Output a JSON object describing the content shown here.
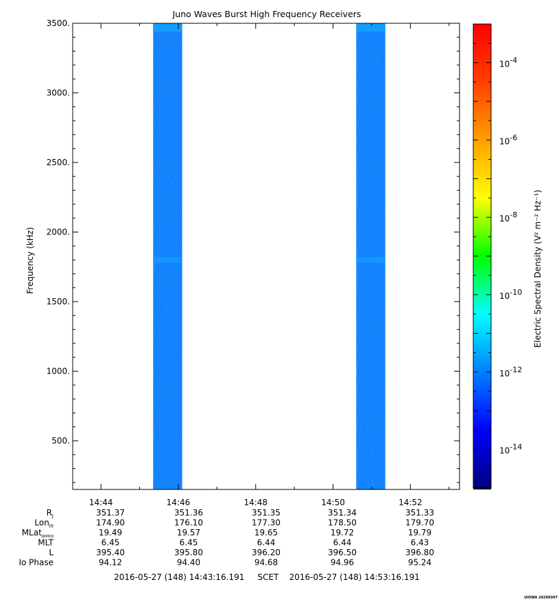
{
  "chart_data": {
    "type": "heatmap",
    "title": "Juno Waves Burst High Frequency Receivers",
    "ylabel": "Frequency (kHz)",
    "ylim": [
      150,
      3500
    ],
    "yticks": [
      {
        "value": 500,
        "label": "500."
      },
      {
        "value": 1000,
        "label": "1000."
      },
      {
        "value": 1500,
        "label": "1500."
      },
      {
        "value": 2000,
        "label": "2000."
      },
      {
        "value": 2500,
        "label": "2500."
      },
      {
        "value": 3000,
        "label": "3000."
      },
      {
        "value": 3500,
        "label": "3500."
      }
    ],
    "y_minor_step": 100,
    "xlim": [
      "14:43:16.191",
      "14:53:16.191"
    ],
    "xlim_minutes": [
      43.27,
      53.27
    ],
    "xticks": [
      {
        "minute": 44,
        "label": "14:44"
      },
      {
        "minute": 46,
        "label": "14:46"
      },
      {
        "minute": 48,
        "label": "14:48"
      },
      {
        "minute": 50,
        "label": "14:50"
      },
      {
        "minute": 52,
        "label": "14:52"
      }
    ],
    "x_minor_step_minutes": 1,
    "bursts": [
      {
        "start_minute": 45.35,
        "end_minute": 46.1
      },
      {
        "start_minute": 50.6,
        "end_minute": 51.35
      }
    ],
    "burst_level_log10": -12.0,
    "burst_bright_bands_khz": [
      {
        "from": 3440,
        "to": 3500,
        "level_log10": -11.6
      },
      {
        "from": 1780,
        "to": 1820,
        "level_log10": -11.7
      }
    ],
    "colorbar": {
      "label": "Electric Spectral Density (V² m⁻² Hz⁻¹)",
      "range_log10": [
        -15,
        -3
      ],
      "colormap": "rainbow",
      "ticks": [
        {
          "exp": -14,
          "label": "10",
          "sup": "-14"
        },
        {
          "exp": -12,
          "label": "10",
          "sup": "-12"
        },
        {
          "exp": -10,
          "label": "10",
          "sup": "-10"
        },
        {
          "exp": -8,
          "label": "10",
          "sup": "-8"
        },
        {
          "exp": -6,
          "label": "10",
          "sup": "-6"
        },
        {
          "exp": -4,
          "label": "10",
          "sup": "-4"
        }
      ]
    },
    "ephemeris": {
      "rows": [
        {
          "label": "R",
          "sub": "J",
          "values": [
            "351.37",
            "351.36",
            "351.35",
            "351.34",
            "351.33"
          ]
        },
        {
          "label": "Lon",
          "sub": "III",
          "values": [
            "174.90",
            "176.10",
            "177.30",
            "178.50",
            "179.70"
          ]
        },
        {
          "label": "MLat",
          "sub": "JRM09",
          "values": [
            "19.49",
            "19.57",
            "19.65",
            "19.72",
            "19.79"
          ]
        },
        {
          "label": "MLT",
          "sub": "",
          "values": [
            "6.45",
            "6.45",
            "6.44",
            "6.44",
            "6.43"
          ]
        },
        {
          "label": "L",
          "sub": "",
          "values": [
            "395.40",
            "395.80",
            "396.20",
            "396.50",
            "396.80"
          ]
        },
        {
          "label": "Io Phase",
          "sub": "",
          "values": [
            "94.12",
            "94.40",
            "94.68",
            "94.96",
            "95.24"
          ]
        }
      ]
    },
    "time_range_text": "2016-05-27 (148) 14:43:16.191     SCET    2016-05-27 (148) 14:53:16.191",
    "credit": "UIOWA 20200307"
  }
}
